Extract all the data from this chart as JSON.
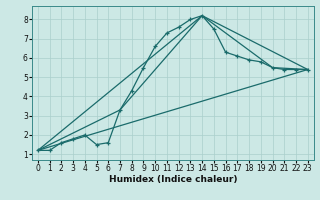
{
  "xlabel": "Humidex (Indice chaleur)",
  "xlim": [
    -0.5,
    23.5
  ],
  "ylim": [
    0.7,
    8.7
  ],
  "bg_color": "#cce8e5",
  "grid_color": "#aacfcc",
  "line_color": "#1a6b6b",
  "line1_x": [
    0,
    1,
    2,
    3,
    4,
    5,
    6,
    7,
    8,
    9,
    10,
    11,
    12,
    13,
    14,
    15,
    16,
    17,
    18,
    19,
    20,
    21,
    22,
    23
  ],
  "line1_y": [
    1.2,
    1.2,
    1.6,
    1.8,
    2.0,
    1.5,
    1.6,
    3.3,
    4.3,
    5.5,
    6.6,
    7.3,
    7.6,
    8.0,
    8.2,
    7.5,
    6.3,
    6.1,
    5.9,
    5.8,
    5.5,
    5.4,
    5.4,
    5.4
  ],
  "line2_x": [
    0,
    7,
    14,
    20,
    23
  ],
  "line2_y": [
    1.2,
    3.3,
    8.2,
    5.5,
    5.4
  ],
  "line3_x": [
    0,
    14,
    23
  ],
  "line3_y": [
    1.2,
    8.2,
    5.4
  ],
  "line4_x": [
    0,
    23
  ],
  "line4_y": [
    1.2,
    5.4
  ],
  "xticks": [
    0,
    1,
    2,
    3,
    4,
    5,
    6,
    7,
    8,
    9,
    10,
    11,
    12,
    13,
    14,
    15,
    16,
    17,
    18,
    19,
    20,
    21,
    22,
    23
  ],
  "yticks": [
    1,
    2,
    3,
    4,
    5,
    6,
    7,
    8
  ]
}
